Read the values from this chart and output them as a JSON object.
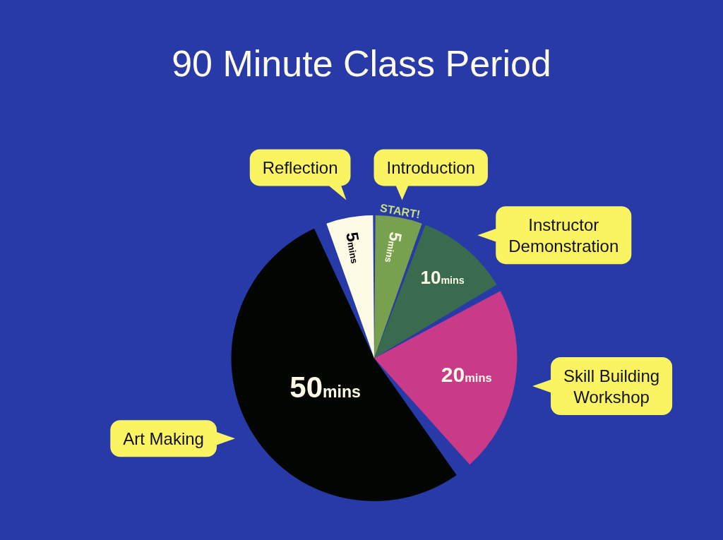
{
  "chart_data": {
    "type": "pie",
    "title": "90 Minute Class Period",
    "categories": [
      "Introduction",
      "Instructor Demonstration",
      "Skill Building Workshop",
      "Art Making",
      "Reflection"
    ],
    "values": [
      5,
      10,
      20,
      50,
      5
    ],
    "colors": [
      "#77a04f",
      "#3a6b4f",
      "#c93a88",
      "#030600",
      "#fdfbe5"
    ],
    "value_labels": [
      "5mins",
      "10mins",
      "20mins",
      "50mins",
      "5mins"
    ],
    "annotations": [
      "START!"
    ]
  }
}
